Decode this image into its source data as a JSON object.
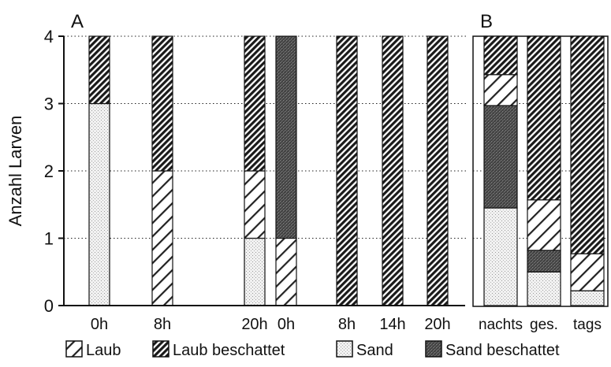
{
  "chart_data": [
    {
      "panel_label": "A",
      "type": "bar",
      "stacked": true,
      "ylabel": "Anzahl Larven",
      "ylim": [
        0,
        4
      ],
      "yticks": [
        "0",
        "1",
        "2",
        "3",
        "4"
      ],
      "grid": "horizontal dotted",
      "categories": [
        "0h",
        "8h",
        "20h",
        "0h",
        "8h",
        "14h",
        "20h"
      ],
      "series": [
        {
          "name": "Laub",
          "values": [
            0,
            2,
            1,
            0,
            0,
            0,
            0
          ]
        },
        {
          "name": "Laub beschattet",
          "values": [
            1,
            2,
            2,
            0,
            4,
            4,
            4
          ]
        },
        {
          "name": "Sand",
          "values": [
            3,
            0,
            1,
            0,
            0,
            0,
            0
          ]
        },
        {
          "name": "Sand beschattet",
          "values": [
            0,
            0,
            0,
            3,
            0,
            0,
            0
          ]
        },
        {
          "name": "",
          "values": [
            0,
            0,
            0,
            1,
            0,
            0,
            0
          ],
          "pattern": "laub"
        }
      ]
    },
    {
      "panel_label": "B",
      "type": "bar",
      "stacked": true,
      "ylim": [
        0,
        4
      ],
      "grid": "horizontal dotted",
      "categories": [
        "nachts",
        "ges.",
        "tags"
      ],
      "series": [
        {
          "name": "Sand",
          "values": [
            1.45,
            0.5,
            0.22
          ]
        },
        {
          "name": "Sand beschattet",
          "values": [
            1.52,
            0.32,
            0
          ]
        },
        {
          "name": "Laub",
          "values": [
            0.46,
            0.75,
            0.55
          ]
        },
        {
          "name": "Laub beschattet",
          "values": [
            0.57,
            2.43,
            3.23
          ]
        }
      ]
    }
  ],
  "legend": {
    "position": "bottom",
    "items": [
      {
        "label": "Laub",
        "pattern": "laub"
      },
      {
        "label": "Laub beschattet",
        "pattern": "laubb"
      },
      {
        "label": "Sand",
        "pattern": "sand"
      },
      {
        "label": "Sand beschattet",
        "pattern": "sandb"
      }
    ]
  }
}
